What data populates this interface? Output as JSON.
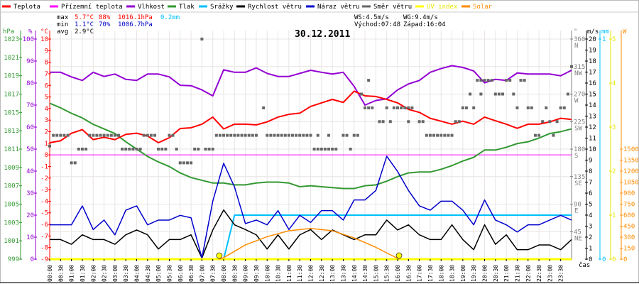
{
  "legend": [
    {
      "label": "Teplota",
      "color": "#ff0000"
    },
    {
      "label": "Přízemní teplota",
      "color": "#ff00ff"
    },
    {
      "label": "Vlhkost",
      "color": "#9400d3"
    },
    {
      "label": "Tlak",
      "color": "#339933"
    },
    {
      "label": "Srážky",
      "color": "#00bfff"
    },
    {
      "label": "Rychlost větru",
      "color": "#000000"
    },
    {
      "label": "Náraz větru",
      "color": "#0000cc"
    },
    {
      "label": "Směr větru",
      "color": "#666666"
    },
    {
      "label": "UV index",
      "color": "#ffff00"
    },
    {
      "label": "Solar",
      "color": "#ff8c00"
    }
  ],
  "stats": {
    "max_label": "max",
    "max_temp": "5.7°C",
    "max_hum": "88%",
    "max_pres": "1016.1hPa",
    "max_rain": "0.2mm",
    "min_label": "min",
    "min_temp": "1.1°C",
    "min_hum": "70%",
    "min_pres": "1006.7hPa",
    "avg_label": "avg",
    "avg_temp": "2.9°C",
    "ws": "WS:4.5m/s",
    "wg": "WG:9.4m/s",
    "sunrise": "Východ:07:48",
    "sunset": "Západ:16:04"
  },
  "chart_data": {
    "type": "line",
    "title": "30.12.2011",
    "xlabel": "čas",
    "x_ticks": [
      "00:00",
      "00:30",
      "01:00",
      "01:30",
      "02:00",
      "02:30",
      "03:00",
      "03:30",
      "04:00",
      "04:30",
      "05:00",
      "05:30",
      "06:00",
      "06:30",
      "07:00",
      "07:30",
      "08:00",
      "08:30",
      "09:00",
      "09:30",
      "10:00",
      "10:30",
      "11:00",
      "11:30",
      "12:00",
      "12:30",
      "13:00",
      "13:30",
      "14:00",
      "14:30",
      "15:00",
      "15:30",
      "16:00",
      "16:30",
      "17:00",
      "17:30",
      "18:00",
      "18:30",
      "19:00",
      "19:30",
      "20:00",
      "20:30",
      "21:00",
      "21:30",
      "22:00",
      "22:30",
      "23:00",
      "23:30"
    ],
    "x_range_hours": [
      0,
      24
    ],
    "axes": {
      "hpa": {
        "unit": "hPa",
        "range": [
          999,
          1023
        ],
        "ticks": [
          "1023",
          "1021",
          "1019",
          "1017",
          "1015",
          "1013",
          "1011",
          "1009",
          "1007",
          "1005",
          "1003",
          "1001",
          "999"
        ]
      },
      "pct": {
        "unit": "%",
        "range": [
          0,
          100
        ],
        "ticks": [
          "100",
          "90",
          "80",
          "70",
          "60",
          "50",
          "40",
          "30",
          "20",
          "10",
          "0"
        ]
      },
      "temp": {
        "unit": "°C",
        "range": [
          -9,
          10
        ],
        "ticks": [
          "10",
          "9",
          "8",
          "7",
          "6",
          "5",
          "4",
          "3",
          "2",
          "1",
          "0",
          "-1",
          "-2",
          "-3",
          "-4",
          "-5",
          "-6",
          "-7",
          "-8",
          "-9"
        ]
      },
      "dir": {
        "unit": "°",
        "range": [
          0,
          360
        ],
        "ticks": [
          "360",
          "315",
          "270",
          "225",
          "180",
          "135",
          "90",
          "45"
        ],
        "compass": [
          "N",
          "NW",
          "W",
          "SW",
          "S",
          "SE",
          "E",
          "NE"
        ]
      },
      "ms": {
        "unit": "m/s",
        "range": [
          0,
          20
        ],
        "ticks": [
          "20",
          "19",
          "18",
          "17",
          "16",
          "15",
          "14",
          "13",
          "12",
          "11",
          "10",
          "9",
          "8",
          "7",
          "6",
          "5",
          "4",
          "3",
          "2",
          "1",
          "0"
        ]
      },
      "mm": {
        "unit": "mm",
        "range": [
          0,
          1
        ],
        "ticks": [
          "1",
          "0"
        ]
      },
      "uv": {
        "unit": "",
        "range": [
          0,
          5
        ],
        "ticks": [
          "5",
          "4",
          "3",
          "2",
          "1",
          "0"
        ]
      },
      "w": {
        "unit": "W",
        "range": [
          0,
          1500
        ],
        "ticks": [
          "1500",
          "1350",
          "1200",
          "1050",
          "900",
          "750",
          "600",
          "450",
          "300",
          "150",
          "0"
        ]
      }
    },
    "series": [
      {
        "name": "Teplota",
        "axis": "temp",
        "values": [
          1.05,
          1.22,
          1.87,
          2.18,
          1.32,
          1.52,
          1.32,
          1.77,
          1.87,
          1.63,
          1.05,
          1.48,
          2.28,
          2.34,
          2.65,
          3.26,
          2.24,
          2.65,
          2.65,
          2.59,
          2.85,
          3.26,
          3.5,
          3.6,
          4.18,
          4.49,
          4.79,
          4.53,
          5.5,
          5.1,
          5.04,
          4.79,
          4.49,
          3.93,
          3.67,
          3.16,
          2.91,
          2.65,
          2.91,
          2.65,
          3.26,
          2.95,
          2.65,
          2.3,
          2.65,
          2.65,
          2.85,
          3.16,
          3.06
        ]
      },
      {
        "name": "Přízemní teplota",
        "axis": "temp",
        "values": [
          0,
          0,
          0,
          0,
          0,
          0,
          0,
          0,
          0,
          0,
          0,
          0,
          0,
          0,
          0,
          0,
          0,
          0,
          0,
          0,
          0,
          0,
          0,
          0,
          0,
          0,
          0,
          0,
          0,
          0,
          0,
          0,
          0,
          0,
          0,
          0,
          0,
          0,
          0,
          0,
          0,
          0,
          0,
          0,
          0,
          0,
          0,
          0,
          0
        ]
      },
      {
        "name": "Vlhkost",
        "axis": "pct",
        "values": [
          84.9,
          84.9,
          82.8,
          81.2,
          84.9,
          83.0,
          84.1,
          81.7,
          81.2,
          84.1,
          84.1,
          82.8,
          79.0,
          78.8,
          76.9,
          74.2,
          86.0,
          84.9,
          84.9,
          86.9,
          84.4,
          83.0,
          83.0,
          84.4,
          85.8,
          84.9,
          84.1,
          84.9,
          78.5,
          70.0,
          72.1,
          72.8,
          76.9,
          79.6,
          81.2,
          84.9,
          86.6,
          87.9,
          87.1,
          85.5,
          80.1,
          81.7,
          81.2,
          84.6,
          84.1,
          84.1,
          84.1,
          83.3,
          85.8
        ]
      },
      {
        "name": "Tlak",
        "axis": "hpa",
        "values": [
          1016.0,
          1015.5,
          1014.9,
          1014.4,
          1013.7,
          1013.2,
          1012.7,
          1011.8,
          1011.0,
          1010.2,
          1009.6,
          1009.1,
          1008.4,
          1007.9,
          1007.6,
          1007.3,
          1007.3,
          1007.1,
          1007.1,
          1007.3,
          1007.4,
          1007.4,
          1007.3,
          1006.9,
          1007.0,
          1006.9,
          1006.8,
          1006.7,
          1006.7,
          1007.0,
          1007.1,
          1007.5,
          1008.0,
          1008.4,
          1008.5,
          1008.5,
          1008.8,
          1009.2,
          1009.7,
          1010.1,
          1010.9,
          1010.9,
          1011.2,
          1011.6,
          1011.8,
          1012.2,
          1012.7,
          1012.9,
          1013.2
        ]
      },
      {
        "name": "Srážky",
        "axis": "mm",
        "values": [
          0,
          0,
          0,
          0,
          0,
          0,
          0,
          0,
          0,
          0,
          0,
          0,
          0,
          0,
          0,
          0,
          0,
          0.2,
          0.2,
          0.2,
          0.2,
          0.2,
          0.2,
          0.2,
          0.2,
          0.2,
          0.2,
          0.2,
          0.2,
          0.2,
          0.2,
          0.2,
          0.2,
          0.2,
          0.2,
          0.2,
          0.2,
          0.2,
          0.2,
          0.2,
          0.2,
          0.2,
          0.2,
          0.2,
          0.2,
          0.2,
          0.2,
          0.2,
          0.2
        ]
      },
      {
        "name": "Rychlost větru",
        "axis": "ms",
        "values": [
          1.78,
          1.78,
          1.35,
          2.21,
          1.78,
          1.78,
          1.35,
          2.21,
          2.65,
          2.21,
          0.92,
          1.78,
          1.78,
          2.21,
          0.1,
          2.65,
          4.47,
          3.12,
          2.69,
          2.21,
          0.92,
          2.21,
          0.92,
          2.21,
          2.69,
          1.78,
          2.65,
          2.21,
          1.78,
          2.21,
          2.21,
          3.55,
          2.65,
          3.12,
          2.21,
          1.78,
          1.78,
          3.12,
          1.78,
          0.86,
          3.12,
          1.35,
          2.21,
          0.86,
          0.86,
          1.29,
          1.29,
          0.86,
          1.78
        ]
      },
      {
        "name": "Náraz větru",
        "axis": "ms",
        "values": [
          3.12,
          3.12,
          3.12,
          4.84,
          2.69,
          3.55,
          2.21,
          4.45,
          4.84,
          3.12,
          3.55,
          3.55,
          3.98,
          3.76,
          0.1,
          5.27,
          8.71,
          6.56,
          3.23,
          3.55,
          3.12,
          4.41,
          2.69,
          3.98,
          3.33,
          4.41,
          4.41,
          3.55,
          5.38,
          5.38,
          6.24,
          9.35,
          7.96,
          6.24,
          4.84,
          4.45,
          5.27,
          5.27,
          4.45,
          3.12,
          5.38,
          3.55,
          3.12,
          2.47,
          3.12,
          3.12,
          3.55,
          3.98,
          3.55
        ]
      },
      {
        "name": "UV index",
        "axis": "uv",
        "values": [
          0,
          0,
          0,
          0,
          0,
          0,
          0,
          0,
          0,
          0,
          0,
          0,
          0,
          0,
          0,
          0,
          0,
          0,
          0,
          0,
          0,
          0,
          0,
          0,
          0,
          0,
          0,
          0,
          0,
          0,
          0,
          0,
          0,
          0,
          0,
          0,
          0,
          0,
          0,
          0,
          0,
          0,
          0,
          0,
          0,
          0,
          0,
          0,
          0
        ]
      },
      {
        "name": "Solar",
        "axis": "w",
        "points": [
          [
            7.8,
            0
          ],
          [
            8,
            20
          ],
          [
            9,
            194
          ],
          [
            10,
            307
          ],
          [
            11,
            387
          ],
          [
            12,
            419
          ],
          [
            13,
            387
          ],
          [
            14,
            290
          ],
          [
            15,
            161
          ],
          [
            16.07,
            0
          ]
        ]
      }
    ],
    "wind_direction_runs": [
      [
        "00:00",
        "00:00",
        185
      ],
      [
        "00:10",
        "00:50",
        202.5
      ],
      [
        "01:00",
        "01:10",
        157.5
      ],
      [
        "01:20",
        "01:40",
        180
      ],
      [
        "01:50",
        "03:10",
        202.5
      ],
      [
        "03:20",
        "04:10",
        180
      ],
      [
        "04:20",
        "04:50",
        202.5
      ],
      [
        "05:00",
        "05:20",
        180
      ],
      [
        "05:30",
        "05:40",
        202.5
      ],
      [
        "05:50",
        "05:50",
        180
      ],
      [
        "06:00",
        "06:30",
        157.5
      ],
      [
        "06:40",
        "06:50",
        180
      ],
      [
        "07:00",
        "07:00",
        360
      ],
      [
        "07:10",
        "07:30",
        180
      ],
      [
        "07:40",
        "09:30",
        202.5
      ],
      [
        "09:50",
        "09:50",
        247.5
      ],
      [
        "10:00",
        "12:00",
        202.5
      ],
      [
        "12:10",
        "13:10",
        180
      ],
      [
        "12:20",
        "12:20",
        202.5
      ],
      [
        "12:50",
        "12:50",
        202.5
      ],
      [
        "13:30",
        "13:40",
        202.5
      ],
      [
        "13:50",
        "13:50",
        180
      ],
      [
        "14:00",
        "14:10",
        202.5
      ],
      [
        "14:20",
        "14:20",
        270
      ],
      [
        "14:30",
        "14:50",
        247.5
      ],
      [
        "14:40",
        "14:40",
        292.5
      ],
      [
        "15:10",
        "15:20",
        225
      ],
      [
        "15:30",
        "15:30",
        247.5
      ],
      [
        "15:40",
        "15:40",
        225
      ],
      [
        "15:50",
        "16:40",
        247.5
      ],
      [
        "16:30",
        "16:30",
        225
      ],
      [
        "17:00",
        "17:10",
        225
      ],
      [
        "17:20",
        "18:30",
        202.5
      ],
      [
        "18:40",
        "18:50",
        225
      ],
      [
        "19:00",
        "19:10",
        247.5
      ],
      [
        "19:20",
        "19:20",
        270
      ],
      [
        "19:30",
        "19:30",
        247.5
      ],
      [
        "19:40",
        "20:20",
        292.5
      ],
      [
        "19:50",
        "19:50",
        270
      ],
      [
        "20:30",
        "20:50",
        270
      ],
      [
        "21:00",
        "21:10",
        292.5
      ],
      [
        "21:20",
        "21:20",
        270
      ],
      [
        "21:30",
        "21:30",
        247.5
      ],
      [
        "21:40",
        "21:50",
        292.5
      ],
      [
        "22:00",
        "22:10",
        247.5
      ],
      [
        "22:20",
        "22:30",
        202.5
      ],
      [
        "22:40",
        "22:40",
        225
      ],
      [
        "22:50",
        "22:50",
        247.5
      ],
      [
        "23:00",
        "23:00",
        225
      ],
      [
        "23:10",
        "23:10",
        202.5
      ],
      [
        "23:20",
        "23:20",
        225
      ],
      [
        "23:30",
        "23:40",
        247.5
      ],
      [
        "23:50",
        "23:50",
        270
      ],
      [
        "24:00",
        "24:00",
        315
      ]
    ],
    "sun_markers": [
      "07:48",
      "16:04"
    ],
    "grid": true
  }
}
